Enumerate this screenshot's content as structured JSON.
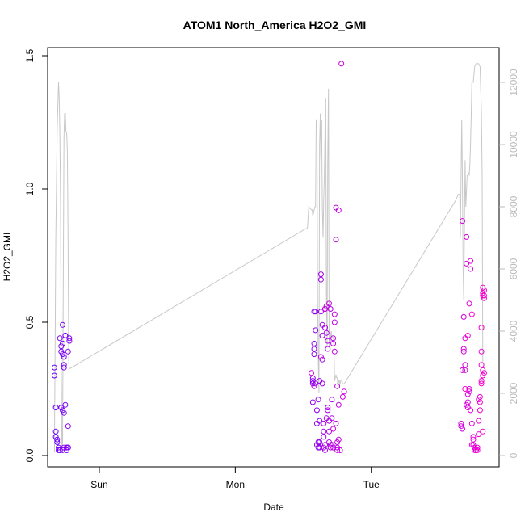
{
  "chart_data": {
    "type": "scatter",
    "title": "ATOM1 North_America H2O2_GMI",
    "xlabel": "Date",
    "ylabel": "H2O2_GMI",
    "xlim": [
      -0.38,
      2.94
    ],
    "ylim": [
      0,
      1.5
    ],
    "x_ticks": [
      {
        "value": 0,
        "label": "Sun"
      },
      {
        "value": 1,
        "label": "Mon"
      },
      {
        "value": 2,
        "label": "Tue"
      }
    ],
    "y_ticks": [
      {
        "value": 0,
        "label": "0.0"
      },
      {
        "value": 0.5,
        "label": "0.5"
      },
      {
        "value": 1.0,
        "label": "1.0"
      },
      {
        "value": 1.5,
        "label": "1.5"
      }
    ],
    "y2_ticks": [
      {
        "value": 0,
        "label": "0"
      },
      {
        "value": 2000,
        "label": "2000"
      },
      {
        "value": 4000,
        "label": "4000"
      },
      {
        "value": 6000,
        "label": "6000"
      },
      {
        "value": 8000,
        "label": "8000"
      },
      {
        "value": 10000,
        "label": "10000"
      },
      {
        "value": 12000,
        "label": "12000"
      }
    ],
    "y2lim": [
      0,
      12700
    ],
    "colors": {
      "start": "#6a00ff",
      "end": "#ff00cc",
      "secondary_line": "#c8c8c8"
    },
    "scatter": {
      "x": [
        -0.33,
        -0.33,
        -0.32,
        -0.32,
        -0.32,
        -0.31,
        -0.31,
        -0.3,
        -0.3,
        -0.29,
        -0.29,
        -0.29,
        -0.28,
        -0.28,
        -0.28,
        -0.27,
        -0.27,
        -0.27,
        -0.27,
        -0.26,
        -0.26,
        -0.26,
        -0.26,
        -0.25,
        -0.25,
        -0.25,
        -0.24,
        -0.24,
        -0.24,
        -0.23,
        -0.23,
        -0.22,
        -0.22,
        -0.23,
        -0.23,
        -0.24,
        -0.27,
        -0.26,
        -0.25,
        1.57,
        1.57,
        1.57,
        1.57,
        1.58,
        1.58,
        1.58,
        1.58,
        1.59,
        1.59,
        1.59,
        1.6,
        1.6,
        1.6,
        1.61,
        1.61,
        1.61,
        1.62,
        1.62,
        1.62,
        1.62,
        1.63,
        1.63,
        1.63,
        1.64,
        1.64,
        1.64,
        1.64,
        1.65,
        1.65,
        1.65,
        1.65,
        1.66,
        1.66,
        1.66,
        1.66,
        1.67,
        1.67,
        1.67,
        1.68,
        1.68,
        1.68,
        1.68,
        1.69,
        1.69,
        1.69,
        1.7,
        1.7,
        1.7,
        1.71,
        1.71,
        1.71,
        1.72,
        1.72,
        1.72,
        1.73,
        1.73,
        1.73,
        1.74,
        1.74,
        1.74,
        1.75,
        1.75,
        1.75,
        1.75,
        1.76,
        1.76,
        1.76,
        1.77,
        1.77,
        1.78,
        1.79,
        1.8,
        1.58,
        1.63,
        1.66,
        1.69,
        1.72,
        1.56,
        2.67,
        2.66,
        2.66,
        2.67,
        2.67,
        2.68,
        2.68,
        2.68,
        2.69,
        2.69,
        2.69,
        2.7,
        2.7,
        2.7,
        2.71,
        2.71,
        2.71,
        2.72,
        2.72,
        2.72,
        2.73,
        2.73,
        2.73,
        2.74,
        2.74,
        2.75,
        2.75,
        2.75,
        2.76,
        2.76,
        2.77,
        2.77,
        2.78,
        2.78,
        2.79,
        2.79,
        2.8,
        2.8,
        2.8,
        2.81,
        2.81,
        2.81,
        2.81,
        2.82,
        2.82,
        2.82,
        2.82,
        2.82,
        2.83,
        2.83,
        2.83,
        2.83,
        2.69,
        2.71,
        2.74,
        2.79,
        2.81,
        2.82
      ],
      "y": [
        0.33,
        0.3,
        0.18,
        0.09,
        0.07,
        0.06,
        0.05,
        0.03,
        0.02,
        0.02,
        0.02,
        0.44,
        0.41,
        0.39,
        0.18,
        0.17,
        0.38,
        0.42,
        0.49,
        0.33,
        0.34,
        0.37,
        0.16,
        0.45,
        0.45,
        0.19,
        0.03,
        0.02,
        0.02,
        0.03,
        0.03,
        0.43,
        0.44,
        0.39,
        0.11,
        0.03,
        0.02,
        0.03,
        0.45,
        0.29,
        0.27,
        0.28,
        0.2,
        0.42,
        0.4,
        0.38,
        0.54,
        0.54,
        0.47,
        0.27,
        0.17,
        0.12,
        0.04,
        0.05,
        0.03,
        0.21,
        0.13,
        0.05,
        0.28,
        0.03,
        0.54,
        0.68,
        0.66,
        0.36,
        0.45,
        0.49,
        0.27,
        0.12,
        0.09,
        0.07,
        0.03,
        0.02,
        0.55,
        0.48,
        0.04,
        0.14,
        0.56,
        0.46,
        0.18,
        0.17,
        0.4,
        0.43,
        0.09,
        0.13,
        0.05,
        0.04,
        0.03,
        0.55,
        0.21,
        0.14,
        0.04,
        0.03,
        0.44,
        0.42,
        0.39,
        0.53,
        0.5,
        0.12,
        0.81,
        0.93,
        0.26,
        0.03,
        0.05,
        0.02,
        0.92,
        0.19,
        0.06,
        0.02,
        0.02,
        1.47,
        0.22,
        0.24,
        0.26,
        0.37,
        0.55,
        0.57,
        0.1,
        0.31,
        0.32,
        0.11,
        0.12,
        0.1,
        0.88,
        0.52,
        0.39,
        0.4,
        0.44,
        0.34,
        0.32,
        0.72,
        0.82,
        0.19,
        0.18,
        0.2,
        0.23,
        0.24,
        0.25,
        0.57,
        0.7,
        0.73,
        0.17,
        0.12,
        0.04,
        0.07,
        0.06,
        0.04,
        0.03,
        0.02,
        0.02,
        0.02,
        0.03,
        0.02,
        0.08,
        0.13,
        0.17,
        0.22,
        0.2,
        0.28,
        0.34,
        0.39,
        0.48,
        0.3,
        0.32,
        0.6,
        0.61,
        0.63,
        0.62,
        0.6,
        0.59,
        0.31,
        0.25,
        0.45,
        0.53,
        0.21,
        0.27,
        0.09
      ]
    },
    "secondary_line": {
      "axis": "y2",
      "x": [
        -0.33,
        -0.32,
        -0.31,
        -0.3,
        -0.295,
        -0.29,
        -0.285,
        -0.28,
        -0.275,
        -0.27,
        -0.265,
        -0.26,
        -0.255,
        -0.25,
        -0.245,
        -0.24,
        -0.235,
        -0.23,
        -0.225,
        -0.22,
        -0.215,
        1.52,
        1.53,
        1.54,
        1.56,
        1.565,
        1.57,
        1.575,
        1.58,
        1.585,
        1.59,
        1.595,
        1.6,
        1.605,
        1.61,
        1.615,
        1.62,
        1.625,
        1.63,
        1.635,
        1.64,
        1.645,
        1.65,
        1.655,
        1.66,
        1.665,
        1.67,
        1.675,
        1.68,
        1.685,
        1.69,
        1.695,
        1.7,
        1.705,
        1.71,
        1.715,
        1.72,
        1.725,
        1.73,
        1.735,
        1.74,
        1.745,
        1.75,
        1.755,
        1.76,
        1.765,
        1.77,
        1.775,
        1.78,
        1.785,
        1.79,
        1.8,
        2.62,
        2.63,
        2.64,
        2.645,
        2.65,
        2.655,
        2.66,
        2.665,
        2.67,
        2.675,
        2.68,
        2.685,
        2.69,
        2.695,
        2.7,
        2.705,
        2.71,
        2.715,
        2.72,
        2.725,
        2.73,
        2.735,
        2.74,
        2.75,
        2.76,
        2.77,
        2.78,
        2.79,
        2.8,
        2.81,
        2.815,
        2.82
      ],
      "y": [
        100,
        7000,
        10500,
        12000,
        11500,
        10200,
        8000,
        3000,
        200,
        400,
        6000,
        10200,
        11000,
        11000,
        10400,
        10400,
        9800,
        7000,
        3000,
        2800,
        2800,
        7300,
        7300,
        8000,
        7900,
        7900,
        7700,
        7800,
        7900,
        8000,
        8000,
        10800,
        10800,
        5000,
        3000,
        2000,
        10000,
        11000,
        9500,
        10800,
        8000,
        7000,
        8200,
        9000,
        10500,
        11500,
        5000,
        3500,
        9500,
        11800,
        3500,
        3500,
        3800,
        4000,
        3800,
        3800,
        3800,
        3500,
        2400,
        2500,
        2600,
        2500,
        2500,
        2200,
        2400,
        2400,
        2300,
        2400,
        2400,
        2400,
        2300,
        2300,
        8200,
        8300,
        8400,
        8400,
        8400,
        7000,
        9000,
        10800,
        9000,
        6000,
        5000,
        7500,
        9500,
        8000,
        8500,
        9000,
        9000,
        9100,
        9000,
        9400,
        10000,
        11000,
        12000,
        12000,
        12500,
        12600,
        12600,
        12600,
        12500,
        11000,
        9000,
        3000
      ]
    }
  }
}
